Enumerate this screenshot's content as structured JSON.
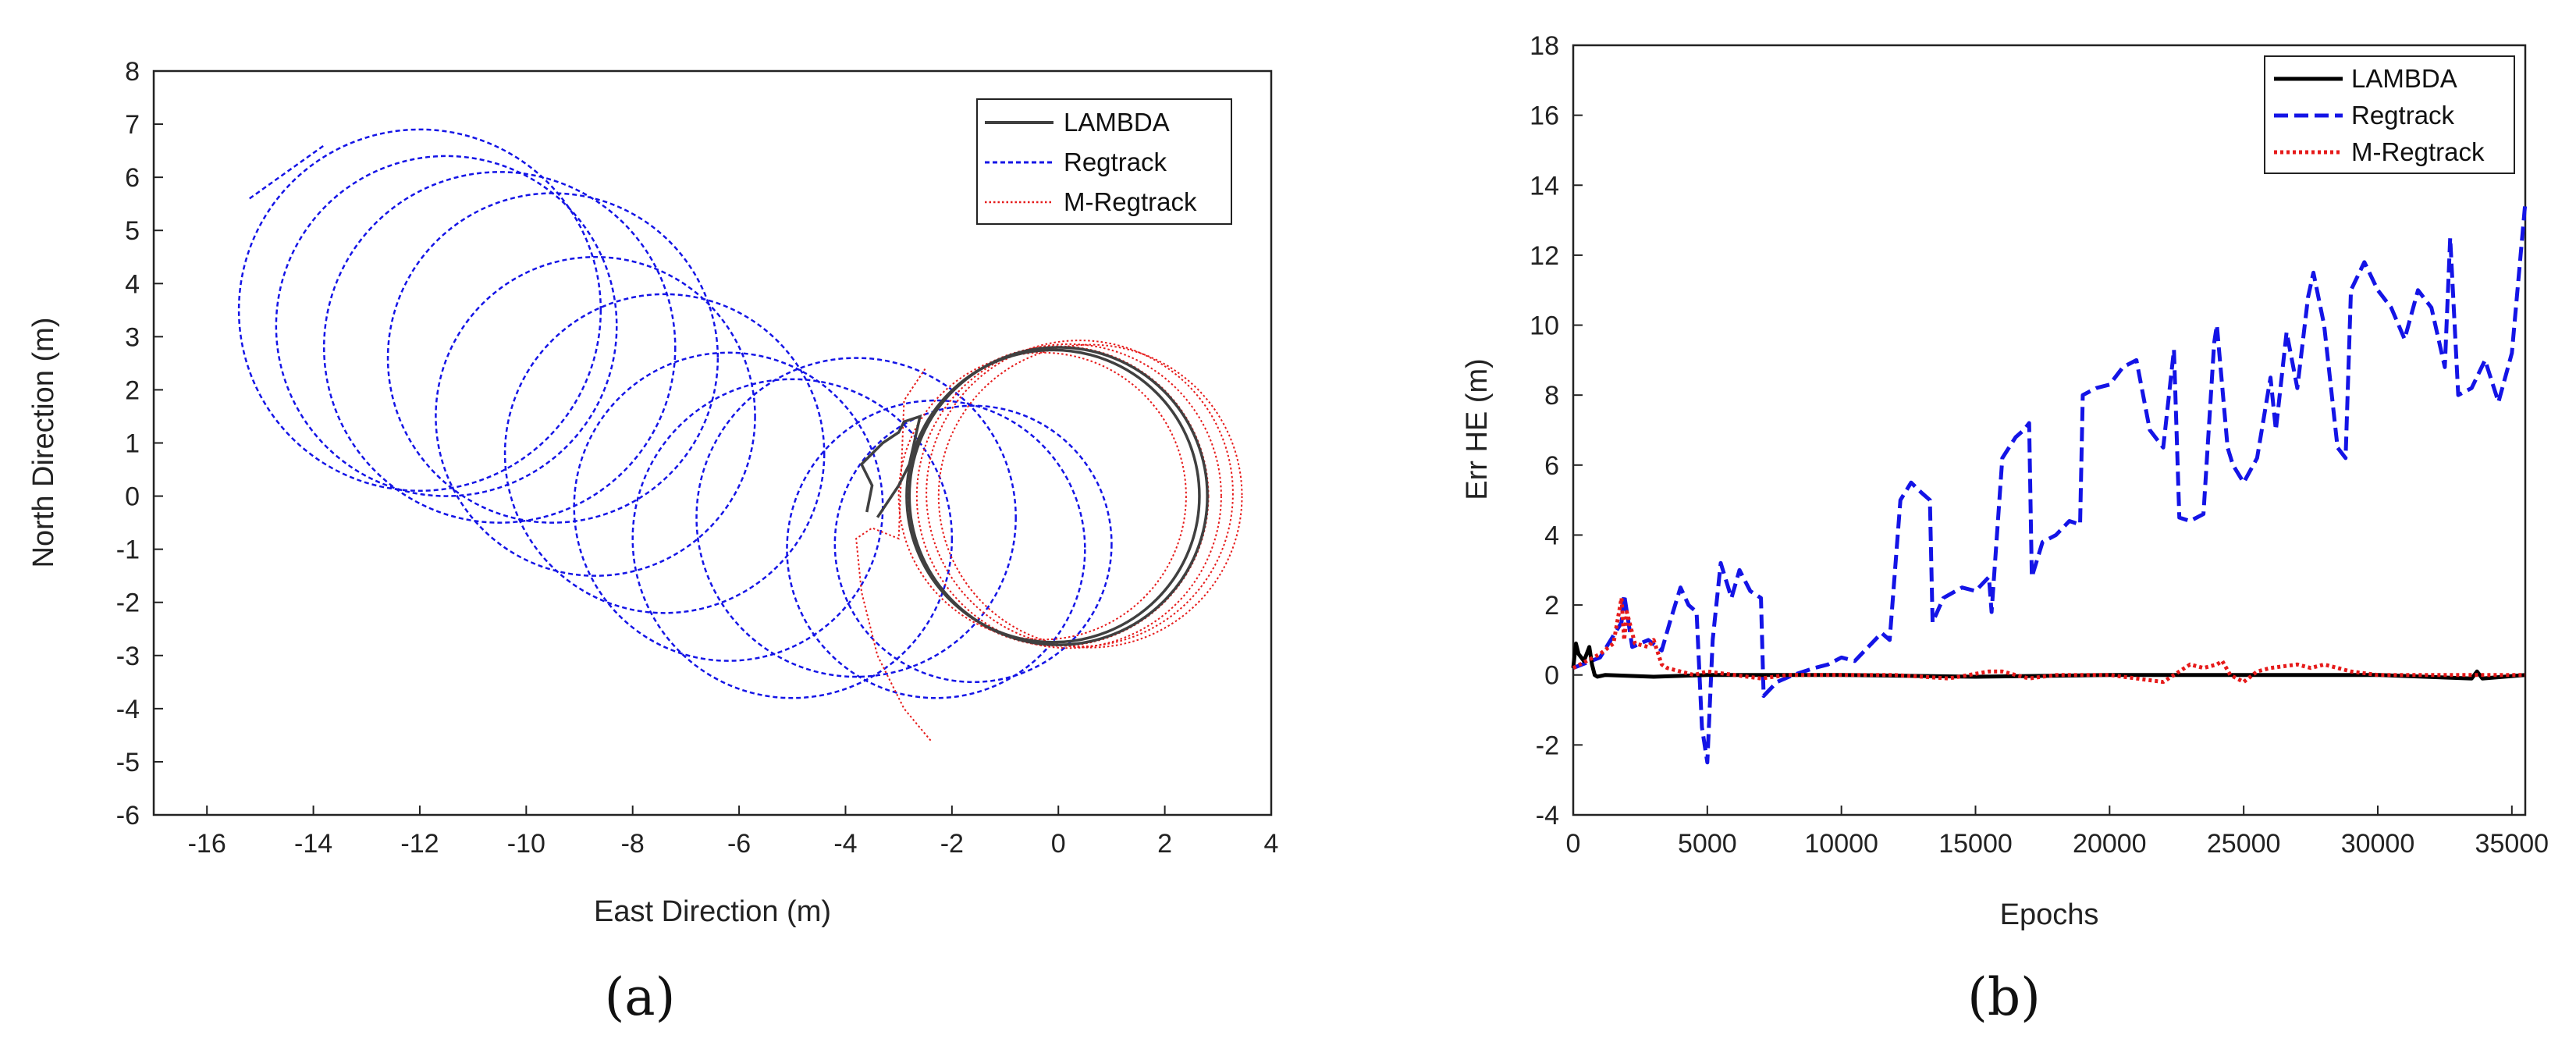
{
  "colors": {
    "lambda": "#404040",
    "lambda_b": "#000000",
    "regtrack": "#1414e6",
    "mregtrack": "#e61a1a"
  },
  "panels": {
    "a_label": "(a)",
    "b_label": "(b)"
  },
  "chart_data": [
    {
      "type": "line",
      "panel": "(a)",
      "title": "",
      "xlabel": "East Direction (m)",
      "ylabel": "North Direction (m)",
      "xlim": [
        -17,
        4
      ],
      "ylim": [
        -6,
        8
      ],
      "xticks": [
        -16,
        -14,
        -12,
        -10,
        -8,
        -6,
        -4,
        -2,
        0,
        2,
        4
      ],
      "yticks": [
        -6,
        -5,
        -4,
        -3,
        -2,
        -1,
        0,
        1,
        2,
        3,
        4,
        5,
        6,
        7,
        8
      ],
      "grid": false,
      "legend_position": "top-right",
      "legend": [
        "LAMBDA",
        "Regtrack",
        "M-Regtrack"
      ],
      "series": [
        {
          "name": "LAMBDA",
          "style": "solid",
          "circles": [
            {
              "cx": 0.0,
              "cy": 0.0,
              "r": 2.8
            },
            {
              "cx": -0.1,
              "cy": 0.0,
              "r": 2.75
            }
          ],
          "points": [
            [
              -3.6,
              -0.3
            ],
            [
              -3.5,
              0.2
            ],
            [
              -3.7,
              0.6
            ],
            [
              -3.3,
              1.0
            ],
            [
              -3.0,
              1.2
            ],
            [
              -2.9,
              1.4
            ],
            [
              -2.6,
              1.5
            ],
            [
              -2.8,
              0.6
            ],
            [
              -3.0,
              0.2
            ],
            [
              -3.4,
              -0.4
            ]
          ]
        },
        {
          "name": "Regtrack",
          "style": "dotted",
          "circles": [
            {
              "cx": -12.0,
              "cy": 3.5,
              "r": 3.4
            },
            {
              "cx": -11.5,
              "cy": 3.2,
              "r": 3.2
            },
            {
              "cx": -10.5,
              "cy": 2.8,
              "r": 3.3
            },
            {
              "cx": -9.5,
              "cy": 2.6,
              "r": 3.1
            },
            {
              "cx": -8.7,
              "cy": 1.5,
              "r": 3.0
            },
            {
              "cx": -7.4,
              "cy": 0.8,
              "r": 3.0
            },
            {
              "cx": -6.2,
              "cy": -0.2,
              "r": 2.9
            },
            {
              "cx": -5.0,
              "cy": -0.8,
              "r": 3.0
            },
            {
              "cx": -3.8,
              "cy": -0.4,
              "r": 3.0
            },
            {
              "cx": -2.3,
              "cy": -1.0,
              "r": 2.8
            },
            {
              "cx": -1.6,
              "cy": -0.9,
              "r": 2.6
            }
          ],
          "arc_start": [
            [
              -15.2,
              5.6
            ],
            [
              -13.8,
              6.6
            ]
          ]
        },
        {
          "name": "M-Regtrack",
          "style": "dotted",
          "circles": [
            {
              "cx": 0.0,
              "cy": 0.0,
              "r": 2.82
            },
            {
              "cx": 0.2,
              "cy": 0.0,
              "r": 2.86
            },
            {
              "cx": 0.4,
              "cy": 0.05,
              "r": 2.88
            },
            {
              "cx": 0.6,
              "cy": 0.0,
              "r": 2.85
            },
            {
              "cx": -0.3,
              "cy": 0.0,
              "r": 2.7
            }
          ],
          "points": [
            [
              -2.4,
              -4.6
            ],
            [
              -2.9,
              -4.0
            ],
            [
              -3.4,
              -3.0
            ],
            [
              -3.7,
              -1.8
            ],
            [
              -3.8,
              -0.8
            ],
            [
              -3.5,
              -0.6
            ],
            [
              -3.0,
              -0.8
            ],
            [
              -2.9,
              1.8
            ],
            [
              -2.5,
              2.4
            ]
          ]
        }
      ]
    },
    {
      "type": "line",
      "panel": "(b)",
      "title": "",
      "xlabel": "Epochs",
      "ylabel": "Err HE (m)",
      "xlim": [
        0,
        35500
      ],
      "ylim": [
        -4,
        18
      ],
      "xticks": [
        0,
        5000,
        10000,
        15000,
        20000,
        25000,
        30000,
        35000
      ],
      "yticks": [
        -4,
        -2,
        0,
        2,
        4,
        6,
        8,
        10,
        12,
        14,
        16,
        18
      ],
      "grid": false,
      "legend_position": "top-right",
      "legend": [
        "LAMBDA",
        "Regtrack",
        "M-Regtrack"
      ],
      "series": [
        {
          "name": "LAMBDA",
          "style": "solid",
          "x": [
            0,
            100,
            200,
            400,
            600,
            700,
            800,
            900,
            1200,
            3000,
            5000,
            10000,
            15000,
            20000,
            25000,
            30000,
            33500,
            33700,
            33900,
            35500
          ],
          "y": [
            0.2,
            0.9,
            0.6,
            0.4,
            0.8,
            0.3,
            0.0,
            -0.05,
            0.0,
            -0.05,
            0.0,
            0.0,
            -0.05,
            0.0,
            0.0,
            0.0,
            -0.1,
            0.1,
            -0.1,
            0.0
          ]
        },
        {
          "name": "Regtrack",
          "style": "dashed",
          "x": [
            0,
            1000,
            1800,
            1900,
            2200,
            2800,
            3300,
            3600,
            4000,
            4300,
            4600,
            4800,
            5000,
            5200,
            5500,
            5900,
            6200,
            6600,
            7000,
            7100,
            7600,
            8200,
            9000,
            9500,
            10000,
            10500,
            11000,
            11500,
            11800,
            12200,
            12600,
            13000,
            13300,
            13400,
            13800,
            14500,
            15000,
            15500,
            15600,
            16000,
            16500,
            16800,
            17000,
            17100,
            17500,
            18000,
            18500,
            18900,
            19000,
            19500,
            20000,
            20500,
            21000,
            21500,
            22000,
            22400,
            22600,
            23000,
            23500,
            23900,
            24000,
            24400,
            24600,
            25000,
            25500,
            26000,
            26200,
            26600,
            27000,
            27400,
            27600,
            28000,
            28500,
            28800,
            29000,
            29500,
            30000,
            30500,
            31000,
            31500,
            32000,
            32500,
            32700,
            33000,
            33500,
            34000,
            34500,
            35000,
            35500
          ],
          "y": [
            0.2,
            0.5,
            1.5,
            2.3,
            0.8,
            1.0,
            0.7,
            1.5,
            2.5,
            2.0,
            1.8,
            -1.5,
            -2.5,
            1.0,
            3.2,
            2.2,
            3.0,
            2.4,
            2.2,
            -0.6,
            -0.2,
            0.0,
            0.2,
            0.3,
            0.5,
            0.4,
            0.8,
            1.2,
            1.0,
            5.0,
            5.5,
            5.2,
            5.0,
            1.5,
            2.2,
            2.5,
            2.4,
            2.8,
            1.8,
            6.2,
            6.8,
            7.0,
            7.2,
            2.8,
            3.8,
            4.0,
            4.4,
            4.3,
            8.0,
            8.2,
            8.3,
            8.8,
            9.0,
            7.0,
            6.5,
            9.3,
            4.5,
            4.4,
            4.6,
            9.5,
            10.0,
            6.5,
            6.0,
            5.5,
            6.2,
            8.5,
            7.0,
            9.8,
            8.2,
            10.8,
            11.5,
            10.0,
            6.5,
            6.2,
            11.0,
            11.8,
            11.0,
            10.5,
            9.6,
            11.0,
            10.5,
            8.8,
            12.5,
            8.0,
            8.2,
            9.0,
            7.8,
            9.2,
            13.5
          ]
        },
        {
          "name": "M-Regtrack",
          "style": "dotted",
          "x": [
            0,
            500,
            1000,
            1500,
            1800,
            1900,
            2000,
            2300,
            2800,
            3000,
            3300,
            3500,
            4000,
            4500,
            5000,
            6000,
            7000,
            8000,
            10000,
            12000,
            14000,
            15500,
            16000,
            17000,
            18000,
            20000,
            21000,
            22000,
            23000,
            23500,
            24000,
            24200,
            24500,
            25000,
            25500,
            26000,
            27000,
            27500,
            28000,
            29000,
            30000,
            32000,
            34000,
            35500
          ],
          "y": [
            0.2,
            0.4,
            0.6,
            0.9,
            2.2,
            1.0,
            1.8,
            0.9,
            0.8,
            1.0,
            0.3,
            0.2,
            0.1,
            0.0,
            0.1,
            0.0,
            -0.1,
            0.0,
            0.0,
            0.0,
            -0.1,
            0.1,
            0.1,
            -0.1,
            0.0,
            0.0,
            -0.1,
            -0.2,
            0.3,
            0.2,
            0.3,
            0.4,
            0.0,
            -0.2,
            0.1,
            0.2,
            0.3,
            0.2,
            0.3,
            0.1,
            0.0,
            0.0,
            0.0,
            0.0
          ]
        }
      ]
    }
  ]
}
